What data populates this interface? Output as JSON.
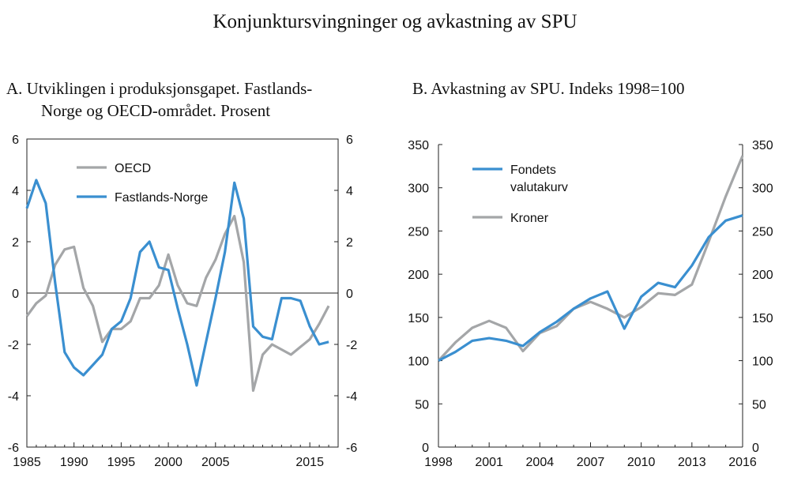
{
  "title": "Konjunktursvingninger og avkastning av SPU",
  "colors": {
    "blue": "#3a8fd0",
    "gray": "#a4a6a8",
    "axis": "#222222"
  },
  "chart_data": [
    {
      "type": "line",
      "title_line1": "A.  Utviklingen i produksjonsgapet. Fastlands-",
      "title_line2": "Norge og OECD-området. Prosent",
      "xlim": [
        1985,
        2018
      ],
      "ylim": [
        -6,
        6
      ],
      "yticks": [
        -6,
        -4,
        -2,
        0,
        2,
        4,
        6
      ],
      "xticks": [
        1985,
        1990,
        1995,
        2000,
        2005,
        2015
      ],
      "x": [
        1985,
        1986,
        1987,
        1988,
        1989,
        1990,
        1991,
        1992,
        1993,
        1994,
        1995,
        1996,
        1997,
        1998,
        1999,
        2000,
        2001,
        2002,
        2003,
        2004,
        2005,
        2006,
        2007,
        2008,
        2009,
        2010,
        2011,
        2012,
        2013,
        2014,
        2015,
        2016,
        2017
      ],
      "series": [
        {
          "name": "OECD",
          "color": "gray",
          "values": [
            -0.9,
            -0.4,
            -0.1,
            1.1,
            1.7,
            1.8,
            0.2,
            -0.5,
            -1.9,
            -1.4,
            -1.4,
            -1.1,
            -0.2,
            -0.2,
            0.3,
            1.5,
            0.3,
            -0.4,
            -0.5,
            0.6,
            1.3,
            2.3,
            3.0,
            1.2,
            -3.8,
            -2.4,
            -2.0,
            -2.2,
            -2.4,
            -2.1,
            -1.8,
            -1.2,
            -0.5
          ]
        },
        {
          "name": "Fastlands-Norge",
          "color": "blue",
          "values": [
            3.3,
            4.4,
            3.5,
            0.4,
            -2.3,
            -2.9,
            -3.2,
            -2.8,
            -2.4,
            -1.4,
            -1.1,
            -0.2,
            1.6,
            2.0,
            1.0,
            0.9,
            -0.6,
            -2.0,
            -3.6,
            -1.9,
            -0.2,
            1.6,
            4.3,
            2.9,
            -1.3,
            -1.7,
            -1.8,
            -0.2,
            -0.2,
            -0.3,
            -1.3,
            -2.0,
            -1.9
          ]
        }
      ],
      "legend_placement": "top-left",
      "zero_line": true
    },
    {
      "type": "line",
      "title": "B.  Avkastning av SPU. Indeks 1998=100",
      "xlim": [
        1998,
        2016
      ],
      "ylim": [
        0,
        350
      ],
      "yticks": [
        0,
        50,
        100,
        150,
        200,
        250,
        300,
        350
      ],
      "xticks": [
        1998,
        2001,
        2004,
        2007,
        2010,
        2013,
        2016
      ],
      "x": [
        1998,
        1999,
        2000,
        2001,
        2002,
        2003,
        2004,
        2005,
        2006,
        2007,
        2008,
        2009,
        2010,
        2011,
        2012,
        2013,
        2014,
        2015,
        2016
      ],
      "series": [
        {
          "name": "Kroner",
          "color": "gray",
          "values": [
            100,
            121,
            138,
            146,
            138,
            111,
            132,
            140,
            160,
            168,
            160,
            150,
            162,
            178,
            176,
            188,
            238,
            290,
            337
          ]
        },
        {
          "name": "Fondets valutakurv",
          "name_line1": "Fondets",
          "name_line2": "valutakurv",
          "color": "blue",
          "values": [
            100,
            110,
            123,
            126,
            123,
            117,
            133,
            145,
            160,
            172,
            180,
            137,
            174,
            190,
            185,
            210,
            243,
            262,
            268
          ]
        }
      ],
      "legend_placement": "top-left"
    }
  ]
}
